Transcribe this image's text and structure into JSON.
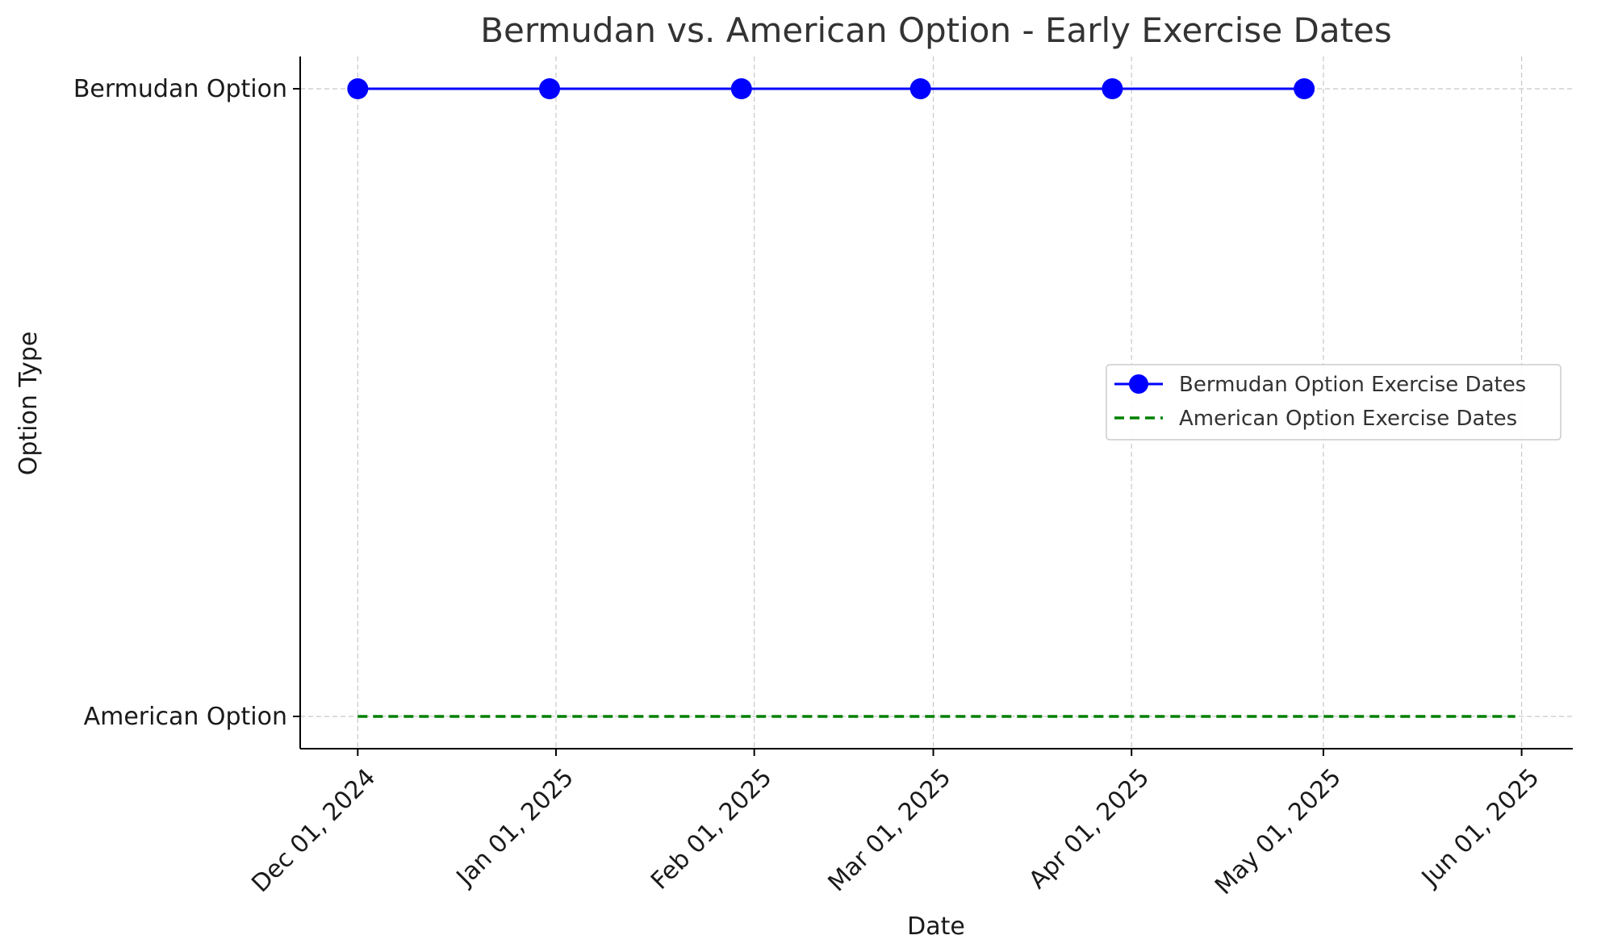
{
  "chart_data": {
    "type": "line",
    "title": "Bermudan vs. American Option - Early Exercise Dates",
    "xlabel": "Date",
    "ylabel": "Option Type",
    "y_categories": [
      "American Option",
      "Bermudan Option"
    ],
    "x_ticks": [
      "2024-12-01",
      "2025-01-01",
      "2025-02-01",
      "2025-03-01",
      "2025-04-01",
      "2025-05-01",
      "2025-06-01"
    ],
    "x_tick_labels": [
      "Dec 01, 2024",
      "Jan 01, 2025",
      "Feb 01, 2025",
      "Mar 01, 2025",
      "Apr 01, 2025",
      "May 01, 2025",
      "Jun 01, 2025"
    ],
    "xlim": [
      "2024-11-22",
      "2025-06-09"
    ],
    "grid": true,
    "legend_position": "center-right",
    "series": [
      {
        "name": "Bermudan Option Exercise Dates",
        "y": "Bermudan Option",
        "x": [
          "2024-12-01",
          "2024-12-31",
          "2025-01-30",
          "2025-02-27",
          "2025-03-29",
          "2025-04-28"
        ],
        "style": "solid",
        "marker": "circle",
        "color": "#0000ff"
      },
      {
        "name": "American Option Exercise Dates",
        "y": "American Option",
        "x": [
          "2024-12-01",
          "2025-05-31"
        ],
        "style": "dashed",
        "marker": "none",
        "color": "#008000"
      }
    ]
  }
}
